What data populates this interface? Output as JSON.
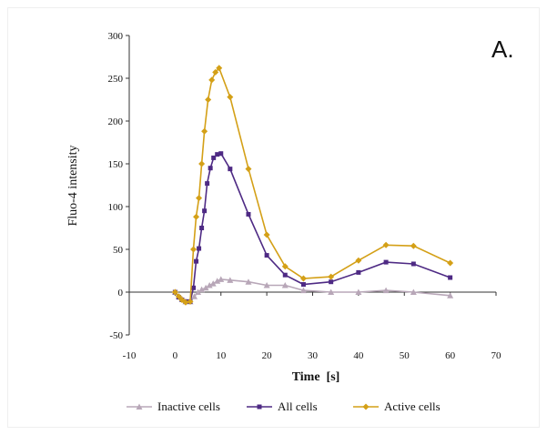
{
  "panel_label": "A.",
  "chart_data": {
    "type": "line",
    "title": "",
    "xlabel": "Time  [s]",
    "ylabel": "Fluo-4 intensity",
    "xlim": [
      -10,
      70
    ],
    "ylim": [
      -50,
      300
    ],
    "xticks": [
      -10,
      0,
      10,
      20,
      30,
      40,
      50,
      60,
      70
    ],
    "yticks": [
      -50,
      0,
      50,
      100,
      150,
      200,
      250,
      300
    ],
    "grid": false,
    "legend": "bottom",
    "series": [
      {
        "name": "Inactive cells",
        "color": "#b8a7b8",
        "marker": "triangle",
        "points": [
          [
            0,
            0
          ],
          [
            0.8,
            -5
          ],
          [
            1.5,
            -8
          ],
          [
            2.3,
            -11
          ],
          [
            3.3,
            -11
          ],
          [
            4.2,
            -5
          ],
          [
            5,
            0
          ],
          [
            5.8,
            3
          ],
          [
            6.7,
            5
          ],
          [
            7.5,
            8
          ],
          [
            8.3,
            10
          ],
          [
            9.2,
            13
          ],
          [
            10,
            15
          ],
          [
            12,
            14
          ],
          [
            16,
            12
          ],
          [
            20,
            8
          ],
          [
            24,
            8
          ],
          [
            28,
            2
          ],
          [
            34,
            0
          ],
          [
            40,
            0
          ],
          [
            46,
            2
          ],
          [
            52,
            0
          ],
          [
            60,
            -4
          ]
        ]
      },
      {
        "name": "All cells",
        "color": "#4e2a84",
        "marker": "square",
        "points": [
          [
            0,
            0
          ],
          [
            0.8,
            -6
          ],
          [
            1.5,
            -9
          ],
          [
            2.3,
            -11
          ],
          [
            3.3,
            -11
          ],
          [
            4,
            5
          ],
          [
            4.6,
            36
          ],
          [
            5.2,
            51
          ],
          [
            5.8,
            75
          ],
          [
            6.4,
            95
          ],
          [
            7,
            127
          ],
          [
            7.7,
            145
          ],
          [
            8.4,
            157
          ],
          [
            9.2,
            161
          ],
          [
            10,
            162
          ],
          [
            12,
            144
          ],
          [
            16,
            91
          ],
          [
            20,
            43
          ],
          [
            24,
            20
          ],
          [
            28,
            9
          ],
          [
            34,
            12
          ],
          [
            40,
            23
          ],
          [
            46,
            35
          ],
          [
            52,
            33
          ],
          [
            60,
            17
          ]
        ]
      },
      {
        "name": "Active cells",
        "color": "#d4a017",
        "marker": "diamond",
        "points": [
          [
            0,
            0
          ],
          [
            0.8,
            -5
          ],
          [
            1.5,
            -9
          ],
          [
            2.3,
            -12
          ],
          [
            3.3,
            -11
          ],
          [
            4,
            50
          ],
          [
            4.6,
            88
          ],
          [
            5.2,
            110
          ],
          [
            5.8,
            150
          ],
          [
            6.4,
            188
          ],
          [
            7.2,
            225
          ],
          [
            8,
            248
          ],
          [
            8.8,
            257
          ],
          [
            9.6,
            262
          ],
          [
            12,
            228
          ],
          [
            16,
            144
          ],
          [
            20,
            67
          ],
          [
            24,
            30
          ],
          [
            28,
            16
          ],
          [
            34,
            18
          ],
          [
            40,
            37
          ],
          [
            46,
            55
          ],
          [
            52,
            54
          ],
          [
            60,
            34
          ]
        ]
      }
    ]
  }
}
